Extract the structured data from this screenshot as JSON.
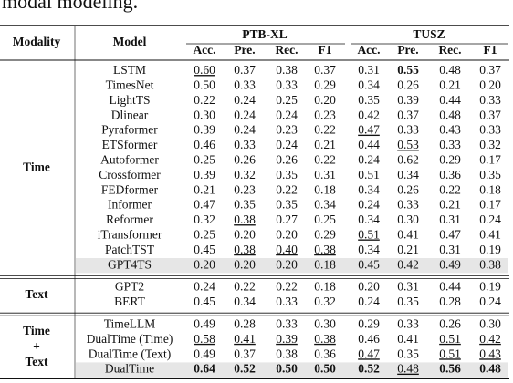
{
  "intro": "modal modeling.",
  "table": {
    "header": {
      "modality": "Modality",
      "model": "Model",
      "datasets": [
        "PTB-XL",
        "TUSZ"
      ],
      "metrics": [
        "Acc.",
        "Pre.",
        "Rec.",
        "F1",
        "Acc.",
        "Pre.",
        "Rec.",
        "F1"
      ]
    },
    "groups": [
      {
        "modality": [
          "Time"
        ],
        "rows": [
          {
            "model": "LSTM",
            "cells": [
              {
                "text": "0.60",
                "underline": true
              },
              "0.37",
              "0.38",
              "0.37",
              "0.31",
              {
                "text": "0.55",
                "bold": true
              },
              "0.48",
              "0.37"
            ]
          },
          {
            "model": "TimesNet",
            "cells": [
              "0.50",
              "0.33",
              "0.33",
              "0.29",
              "0.34",
              "0.26",
              "0.21",
              "0.20"
            ]
          },
          {
            "model": "LightTS",
            "cells": [
              "0.22",
              "0.24",
              "0.25",
              "0.20",
              "0.35",
              "0.39",
              "0.44",
              "0.33"
            ]
          },
          {
            "model": "Dlinear",
            "cells": [
              "0.30",
              "0.24",
              "0.24",
              "0.23",
              "0.42",
              "0.37",
              "0.48",
              "0.37"
            ]
          },
          {
            "model": "Pyraformer",
            "cells": [
              "0.39",
              "0.24",
              "0.23",
              "0.22",
              {
                "text": "0.47",
                "underline": true
              },
              "0.33",
              "0.43",
              "0.33"
            ]
          },
          {
            "model": "ETSformer",
            "cells": [
              "0.46",
              "0.33",
              "0.24",
              "0.21",
              "0.44",
              {
                "text": "0.53",
                "underline": true
              },
              "0.33",
              "0.32"
            ]
          },
          {
            "model": "Autoformer",
            "cells": [
              "0.25",
              "0.26",
              "0.26",
              "0.22",
              "0.24",
              "0.62",
              "0.29",
              "0.17"
            ]
          },
          {
            "model": "Crossformer",
            "cells": [
              "0.39",
              "0.32",
              "0.35",
              "0.31",
              "0.51",
              "0.34",
              "0.36",
              "0.35"
            ]
          },
          {
            "model": "FEDformer",
            "cells": [
              "0.21",
              "0.23",
              "0.22",
              "0.18",
              "0.34",
              "0.26",
              "0.22",
              "0.18"
            ]
          },
          {
            "model": "Informer",
            "cells": [
              "0.47",
              "0.35",
              "0.35",
              "0.34",
              "0.24",
              "0.33",
              "0.21",
              "0.17"
            ]
          },
          {
            "model": "Reformer",
            "cells": [
              "0.32",
              {
                "text": "0.38",
                "underline": true
              },
              "0.27",
              "0.25",
              "0.34",
              "0.30",
              "0.31",
              "0.24"
            ]
          },
          {
            "model": "iTransformer",
            "cells": [
              "0.25",
              "0.20",
              "0.20",
              "0.29",
              {
                "text": "0.51",
                "underline": true
              },
              "0.41",
              "0.47",
              "0.41"
            ]
          },
          {
            "model": "PatchTST",
            "cells": [
              "0.45",
              {
                "text": "0.38",
                "underline": true
              },
              {
                "text": "0.40",
                "underline": true
              },
              {
                "text": "0.38",
                "underline": true
              },
              "0.34",
              "0.21",
              "0.31",
              "0.19"
            ]
          },
          {
            "model": "GPT4TS",
            "shaded": true,
            "cells": [
              "0.20",
              "0.20",
              "0.20",
              "0.18",
              "0.45",
              "0.42",
              "0.49",
              "0.38"
            ]
          }
        ]
      },
      {
        "modality": [
          "Text"
        ],
        "rows": [
          {
            "model": "GPT2",
            "cells": [
              "0.24",
              "0.22",
              "0.22",
              "0.18",
              "0.20",
              "0.31",
              "0.44",
              "0.19"
            ]
          },
          {
            "model": "BERT",
            "cells": [
              "0.45",
              "0.34",
              "0.33",
              "0.32",
              "0.24",
              "0.35",
              "0.28",
              "0.24"
            ]
          }
        ]
      },
      {
        "modality": [
          "Time",
          "+",
          "Text"
        ],
        "rows": [
          {
            "model": "TimeLLM",
            "cells": [
              "0.49",
              "0.28",
              "0.33",
              "0.30",
              "0.29",
              "0.33",
              "0.26",
              "0.30"
            ]
          },
          {
            "model": "DualTime (Time)",
            "cells": [
              {
                "text": "0.58",
                "underline": true
              },
              {
                "text": "0.41",
                "underline": true
              },
              {
                "text": "0.39",
                "underline": true
              },
              {
                "text": "0.38",
                "underline": true
              },
              "0.46",
              "0.41",
              {
                "text": "0.51",
                "underline": true
              },
              {
                "text": "0.42",
                "underline": true
              }
            ]
          },
          {
            "model": "DualTime (Text)",
            "cells": [
              "0.49",
              "0.37",
              "0.38",
              "0.36",
              {
                "text": "0.47",
                "underline": true
              },
              "0.35",
              {
                "text": "0.51",
                "underline": true
              },
              {
                "text": "0.43",
                "underline": true
              }
            ]
          },
          {
            "model": "DualTime",
            "shaded": true,
            "cells": [
              {
                "text": "0.64",
                "bold": true
              },
              {
                "text": "0.52",
                "bold": true
              },
              {
                "text": "0.50",
                "bold": true
              },
              {
                "text": "0.50",
                "bold": true
              },
              {
                "text": "0.52",
                "bold": true
              },
              {
                "text": "0.48",
                "underline": true
              },
              {
                "text": "0.56",
                "bold": true
              },
              {
                "text": "0.48",
                "bold": true
              }
            ]
          }
        ]
      }
    ]
  }
}
